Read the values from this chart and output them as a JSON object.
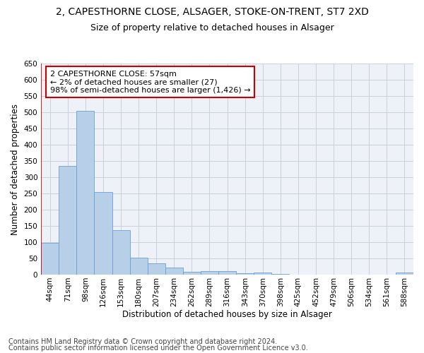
{
  "title_line1": "2, CAPESTHORNE CLOSE, ALSAGER, STOKE-ON-TRENT, ST7 2XD",
  "title_line2": "Size of property relative to detached houses in Alsager",
  "xlabel": "Distribution of detached houses by size in Alsager",
  "ylabel": "Number of detached properties",
  "categories": [
    "44sqm",
    "71sqm",
    "98sqm",
    "126sqm",
    "153sqm",
    "180sqm",
    "207sqm",
    "234sqm",
    "262sqm",
    "289sqm",
    "316sqm",
    "343sqm",
    "370sqm",
    "398sqm",
    "425sqm",
    "452sqm",
    "479sqm",
    "506sqm",
    "534sqm",
    "561sqm",
    "588sqm"
  ],
  "values": [
    97,
    335,
    505,
    255,
    138,
    53,
    36,
    21,
    8,
    11,
    11,
    4,
    7,
    2,
    1,
    1,
    1,
    1,
    1,
    1,
    6
  ],
  "bar_color": "#b8cfe8",
  "bar_edge_color": "#6a9fd8",
  "highlight_line_color": "#cc0000",
  "annotation_text": "2 CAPESTHORNE CLOSE: 57sqm\n← 2% of detached houses are smaller (27)\n98% of semi-detached houses are larger (1,426) →",
  "annotation_box_color": "#ffffff",
  "annotation_box_edge_color": "#cc0000",
  "ylim": [
    0,
    650
  ],
  "yticks": [
    0,
    50,
    100,
    150,
    200,
    250,
    300,
    350,
    400,
    450,
    500,
    550,
    600,
    650
  ],
  "grid_color": "#c8d0dc",
  "background_color": "#eef2f8",
  "footer_line1": "Contains HM Land Registry data © Crown copyright and database right 2024.",
  "footer_line2": "Contains public sector information licensed under the Open Government Licence v3.0.",
  "title_fontsize": 10,
  "subtitle_fontsize": 9,
  "axis_label_fontsize": 8.5,
  "tick_label_fontsize": 7.5,
  "annotation_fontsize": 8,
  "footer_fontsize": 7
}
